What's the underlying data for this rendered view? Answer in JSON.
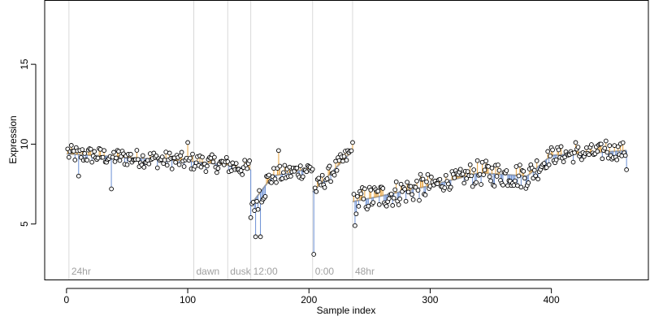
{
  "chart_data": {
    "type": "scatter",
    "title": "",
    "xlabel": "Sample index",
    "ylabel": "Expression",
    "xlim": [
      -18,
      480
    ],
    "ylim": [
      1.5,
      19
    ],
    "x_ticks": [
      0,
      100,
      200,
      300,
      400
    ],
    "x_tick_labels": [
      "0",
      "100",
      "200",
      "300",
      "400"
    ],
    "y_ticks": [
      5,
      10,
      15
    ],
    "y_tick_labels": [
      "5",
      "10",
      "15"
    ],
    "grid": false,
    "legend": "none",
    "colors": {
      "above_fit": "#e8a33d",
      "below_fit": "#6a8fd4",
      "fit_line": "#9e9e9e",
      "point_edge": "#000000",
      "point_fill": "#ffffff",
      "annotation_line": "#d9d9d9",
      "annotation_text": "#a0a0a0"
    },
    "annotations": [
      {
        "x": 2,
        "label": "24hr"
      },
      {
        "x": 105,
        "label": "dawn"
      },
      {
        "x": 133,
        "label": "dusk"
      },
      {
        "x": 152,
        "label": "12:00"
      },
      {
        "x": 203,
        "label": "0:00"
      },
      {
        "x": 236,
        "label": "48hr"
      }
    ],
    "trend_segments": [
      {
        "x": [
          0,
          105
        ],
        "y": [
          9.4,
          8.9
        ]
      },
      {
        "x": [
          105,
          133
        ],
        "y": [
          8.9,
          8.7
        ]
      },
      {
        "x": [
          133,
          152
        ],
        "y": [
          8.7,
          8.4
        ]
      },
      {
        "x": [
          152,
          170
        ],
        "y": [
          6.2,
          8.0
        ]
      },
      {
        "x": [
          170,
          203
        ],
        "y": [
          8.0,
          8.5
        ]
      },
      {
        "x": [
          203,
          236
        ],
        "y": [
          7.0,
          9.6
        ]
      },
      {
        "x": [
          236,
          250
        ],
        "y": [
          6.4,
          6.6
        ]
      },
      {
        "x": [
          250,
          300
        ],
        "y": [
          6.6,
          7.4
        ]
      },
      {
        "x": [
          300,
          340
        ],
        "y": [
          7.4,
          8.2
        ]
      },
      {
        "x": [
          340,
          380
        ],
        "y": [
          8.2,
          8.0
        ]
      },
      {
        "x": [
          380,
          400
        ],
        "y": [
          8.0,
          9.3
        ]
      },
      {
        "x": [
          400,
          462
        ],
        "y": [
          9.3,
          9.6
        ]
      }
    ],
    "point_count": 462,
    "sample_points": [
      {
        "x": 1,
        "y": 9.7
      },
      {
        "x": 10,
        "y": 8.0
      },
      {
        "x": 37,
        "y": 7.2
      },
      {
        "x": 100,
        "y": 10.1
      },
      {
        "x": 152,
        "y": 5.4
      },
      {
        "x": 156,
        "y": 4.2
      },
      {
        "x": 160,
        "y": 4.2
      },
      {
        "x": 175,
        "y": 9.6
      },
      {
        "x": 204,
        "y": 3.1
      },
      {
        "x": 236,
        "y": 10.1
      },
      {
        "x": 238,
        "y": 4.9
      },
      {
        "x": 420,
        "y": 10.1
      },
      {
        "x": 445,
        "y": 10.2
      },
      {
        "x": 462,
        "y": 8.4
      }
    ]
  }
}
